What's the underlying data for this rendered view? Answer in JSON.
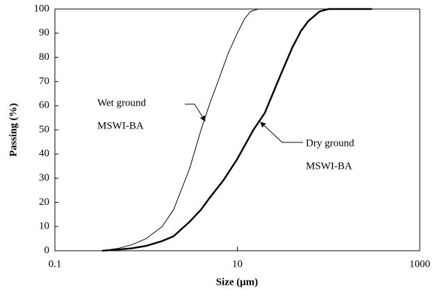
{
  "chart_data": {
    "type": "line",
    "x_label": "Size (μm)",
    "y_label": "Passing (%)",
    "xscale": "log",
    "xlim": [
      0.1,
      1000
    ],
    "xticks": [
      0.1,
      10,
      1000
    ],
    "ylim": [
      0,
      100
    ],
    "yticks": [
      0,
      10,
      20,
      30,
      40,
      50,
      60,
      70,
      80,
      90,
      100
    ],
    "series": [
      {
        "color": "#000000",
        "line_width": 1,
        "x": [
          0.33,
          0.5,
          0.7,
          1,
          1.5,
          2,
          3,
          4,
          5,
          6,
          7,
          8,
          10,
          12,
          14,
          17
        ],
        "values": [
          0,
          1,
          2.5,
          5,
          10,
          17,
          34,
          50,
          61,
          69,
          76,
          82,
          90,
          96,
          99,
          100
        ]
      },
      {
        "color": "#000000",
        "line_width": 2.5,
        "x": [
          0.33,
          0.5,
          0.7,
          1,
          1.5,
          2,
          3,
          4,
          5,
          7,
          10,
          15,
          20,
          30,
          40,
          50,
          60,
          80,
          100,
          300
        ],
        "values": [
          0,
          0.5,
          1,
          2,
          4,
          6,
          12,
          17,
          22,
          29,
          38,
          50,
          57,
          73,
          84,
          91,
          95,
          99,
          100,
          100
        ]
      }
    ],
    "annotations": [
      {
        "lines": [
          "Wet ground",
          "MSWI-BA"
        ]
      },
      {
        "lines": [
          "Dry ground",
          "MSWI-BA"
        ]
      }
    ]
  }
}
